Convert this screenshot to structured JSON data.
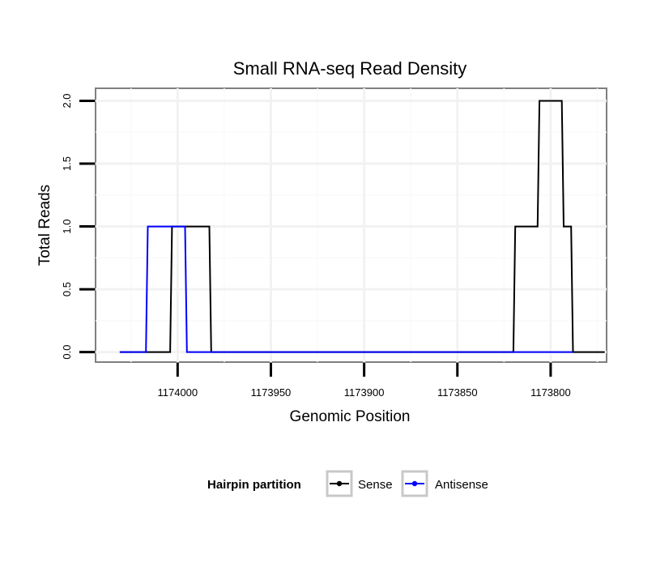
{
  "chart_data": {
    "type": "line",
    "title": "Small RNA-seq Read Density",
    "xlabel": "Genomic Position",
    "ylabel": "Total Reads",
    "x_reversed": true,
    "xlim": [
      1174044,
      1173770
    ],
    "ylim": [
      -0.08,
      2.1
    ],
    "grid": true,
    "x_ticks": [
      {
        "value": 1174000,
        "label": "1174000"
      },
      {
        "value": 1173950,
        "label": "1173950"
      },
      {
        "value": 1173900,
        "label": "1173900"
      },
      {
        "value": 1173850,
        "label": "1173850"
      },
      {
        "value": 1173800,
        "label": "1173800"
      }
    ],
    "y_ticks": [
      {
        "value": 0.0,
        "label": "0.0"
      },
      {
        "value": 0.5,
        "label": "0.5"
      },
      {
        "value": 1.0,
        "label": "1.0"
      },
      {
        "value": 1.5,
        "label": "1.5"
      },
      {
        "value": 2.0,
        "label": "2.0"
      }
    ],
    "series": [
      {
        "name": "Sense",
        "color": "#000000",
        "points": [
          [
            1174031,
            0
          ],
          [
            1174004,
            0
          ],
          [
            1174003,
            1
          ],
          [
            1173997,
            1
          ],
          [
            1173996,
            1
          ],
          [
            1173983,
            1
          ],
          [
            1173982,
            0
          ],
          [
            1173820,
            0
          ],
          [
            1173819,
            1
          ],
          [
            1173807,
            1
          ],
          [
            1173806,
            2
          ],
          [
            1173794,
            2
          ],
          [
            1173793,
            1
          ],
          [
            1173789,
            1
          ],
          [
            1173788,
            0
          ],
          [
            1173771,
            0
          ]
        ]
      },
      {
        "name": "Antisense",
        "color": "#0000ff",
        "points": [
          [
            1174031,
            0
          ],
          [
            1174017,
            0
          ],
          [
            1174016,
            1
          ],
          [
            1173996,
            1
          ],
          [
            1173995,
            0
          ],
          [
            1173983,
            0
          ],
          [
            1173820,
            0
          ],
          [
            1173788,
            0
          ]
        ]
      }
    ],
    "legend": {
      "title": "Hairpin partition",
      "position": "bottom",
      "entries": [
        {
          "label": "Sense",
          "color": "#000000"
        },
        {
          "label": "Antisense",
          "color": "#0000ff"
        }
      ]
    }
  }
}
